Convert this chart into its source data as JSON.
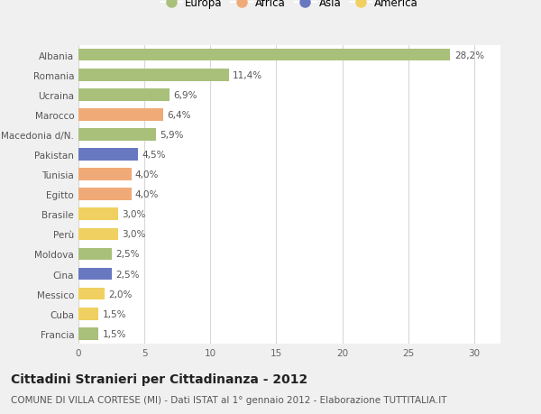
{
  "categories": [
    "Albania",
    "Romania",
    "Ucraina",
    "Marocco",
    "Macedonia d/N.",
    "Pakistan",
    "Tunisia",
    "Egitto",
    "Brasile",
    "Perù",
    "Moldova",
    "Cina",
    "Messico",
    "Cuba",
    "Francia"
  ],
  "values": [
    28.2,
    11.4,
    6.9,
    6.4,
    5.9,
    4.5,
    4.0,
    4.0,
    3.0,
    3.0,
    2.5,
    2.5,
    2.0,
    1.5,
    1.5
  ],
  "labels": [
    "28,2%",
    "11,4%",
    "6,9%",
    "6,4%",
    "5,9%",
    "4,5%",
    "4,0%",
    "4,0%",
    "3,0%",
    "3,0%",
    "2,5%",
    "2,5%",
    "2,0%",
    "1,5%",
    "1,5%"
  ],
  "continents": [
    "Europa",
    "Europa",
    "Europa",
    "Africa",
    "Europa",
    "Asia",
    "Africa",
    "Africa",
    "America",
    "America",
    "Europa",
    "Asia",
    "America",
    "America",
    "Europa"
  ],
  "continent_colors": {
    "Europa": "#a8c07a",
    "Africa": "#f0aa78",
    "Asia": "#6878c0",
    "America": "#f0d060"
  },
  "legend_order": [
    "Europa",
    "Africa",
    "Asia",
    "America"
  ],
  "title": "Cittadini Stranieri per Cittadinanza - 2012",
  "subtitle": "COMUNE DI VILLA CORTESE (MI) - Dati ISTAT al 1° gennaio 2012 - Elaborazione TUTTITALIA.IT",
  "xlim": [
    0,
    32
  ],
  "xticks": [
    0,
    5,
    10,
    15,
    20,
    25,
    30
  ],
  "background_color": "#f0f0f0",
  "bar_background": "#ffffff",
  "grid_color": "#d8d8d8",
  "title_fontsize": 10,
  "subtitle_fontsize": 7.5,
  "label_fontsize": 7.5,
  "tick_fontsize": 7.5,
  "legend_fontsize": 8.5
}
